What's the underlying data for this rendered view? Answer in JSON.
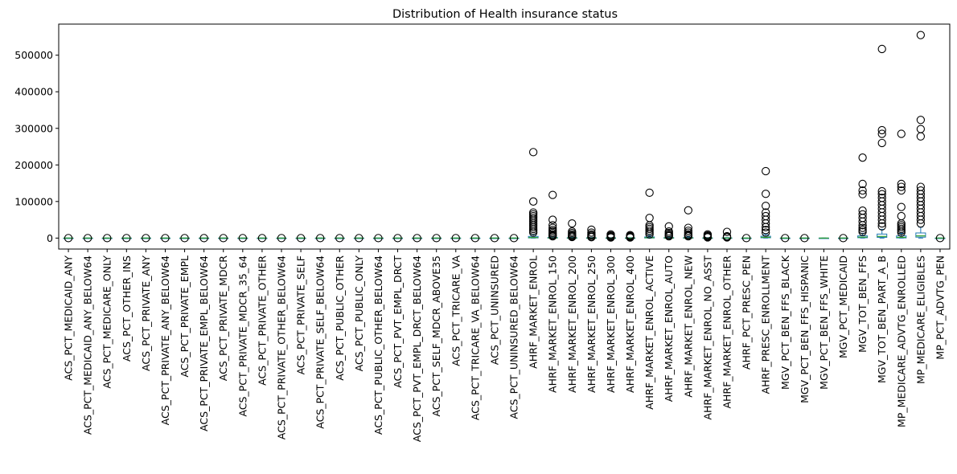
{
  "chart_data": {
    "type": "boxplot",
    "title": "Distribution of Health insurance status",
    "xlabel": "",
    "ylabel": "",
    "ylim": [
      -30000,
      585000
    ],
    "yticks": [
      0,
      100000,
      200000,
      300000,
      400000,
      500000
    ],
    "ytick_labels": [
      "0",
      "100000",
      "200000",
      "300000",
      "400000",
      "500000"
    ],
    "colors": {
      "box": "#1f77b4",
      "median": "#2ca02c",
      "flier": "#000000",
      "axis": "#000000"
    },
    "grid": false,
    "boxes": [
      {
        "name": "ACS_PCT_MEDICAID_ANY",
        "q1": 0,
        "median": 0,
        "q3": 0,
        "whisker_low": 0,
        "whisker_high": 0,
        "fliers": [
          0
        ]
      },
      {
        "name": "ACS_PCT_MEDICAID_ANY_BELOW64",
        "q1": 0,
        "median": 0,
        "q3": 0,
        "whisker_low": 0,
        "whisker_high": 0,
        "fliers": [
          0
        ]
      },
      {
        "name": "ACS_PCT_MEDICARE_ONLY",
        "q1": 0,
        "median": 0,
        "q3": 0,
        "whisker_low": 0,
        "whisker_high": 0,
        "fliers": [
          0
        ]
      },
      {
        "name": "ACS_PCT_OTHER_INS",
        "q1": 0,
        "median": 0,
        "q3": 0,
        "whisker_low": 0,
        "whisker_high": 0,
        "fliers": [
          0
        ]
      },
      {
        "name": "ACS_PCT_PRIVATE_ANY",
        "q1": 0,
        "median": 0,
        "q3": 0,
        "whisker_low": 0,
        "whisker_high": 0,
        "fliers": [
          0
        ]
      },
      {
        "name": "ACS_PCT_PRIVATE_ANY_BELOW64",
        "q1": 0,
        "median": 0,
        "q3": 0,
        "whisker_low": 0,
        "whisker_high": 0,
        "fliers": [
          0
        ]
      },
      {
        "name": "ACS_PCT_PRIVATE_EMPL",
        "q1": 0,
        "median": 0,
        "q3": 0,
        "whisker_low": 0,
        "whisker_high": 0,
        "fliers": [
          0
        ]
      },
      {
        "name": "ACS_PCT_PRIVATE_EMPL_BELOW64",
        "q1": 0,
        "median": 0,
        "q3": 0,
        "whisker_low": 0,
        "whisker_high": 0,
        "fliers": [
          0
        ]
      },
      {
        "name": "ACS_PCT_PRIVATE_MDCR",
        "q1": 0,
        "median": 0,
        "q3": 0,
        "whisker_low": 0,
        "whisker_high": 0,
        "fliers": [
          0
        ]
      },
      {
        "name": "ACS_PCT_PRIVATE_MDCR_35_64",
        "q1": 0,
        "median": 0,
        "q3": 0,
        "whisker_low": 0,
        "whisker_high": 0,
        "fliers": [
          0
        ]
      },
      {
        "name": "ACS_PCT_PRIVATE_OTHER",
        "q1": 0,
        "median": 0,
        "q3": 0,
        "whisker_low": 0,
        "whisker_high": 0,
        "fliers": [
          0
        ]
      },
      {
        "name": "ACS_PCT_PRIVATE_OTHER_BELOW64",
        "q1": 0,
        "median": 0,
        "q3": 0,
        "whisker_low": 0,
        "whisker_high": 0,
        "fliers": [
          0
        ]
      },
      {
        "name": "ACS_PCT_PRIVATE_SELF",
        "q1": 0,
        "median": 0,
        "q3": 0,
        "whisker_low": 0,
        "whisker_high": 0,
        "fliers": [
          0
        ]
      },
      {
        "name": "ACS_PCT_PRIVATE_SELF_BELOW64",
        "q1": 0,
        "median": 0,
        "q3": 0,
        "whisker_low": 0,
        "whisker_high": 0,
        "fliers": [
          0
        ]
      },
      {
        "name": "ACS_PCT_PUBLIC_OTHER",
        "q1": 0,
        "median": 0,
        "q3": 0,
        "whisker_low": 0,
        "whisker_high": 0,
        "fliers": [
          0
        ]
      },
      {
        "name": "ACS_PCT_PUBLIC_ONLY",
        "q1": 0,
        "median": 0,
        "q3": 0,
        "whisker_low": 0,
        "whisker_high": 0,
        "fliers": [
          0
        ]
      },
      {
        "name": "ACS_PCT_PUBLIC_OTHER_BELOW64",
        "q1": 0,
        "median": 0,
        "q3": 0,
        "whisker_low": 0,
        "whisker_high": 0,
        "fliers": [
          0
        ]
      },
      {
        "name": "ACS_PCT_PVT_EMPL_DRCT",
        "q1": 0,
        "median": 0,
        "q3": 0,
        "whisker_low": 0,
        "whisker_high": 0,
        "fliers": [
          0
        ]
      },
      {
        "name": "ACS_PCT_PVT_EMPL_DRCT_BELOW64",
        "q1": 0,
        "median": 0,
        "q3": 0,
        "whisker_low": 0,
        "whisker_high": 0,
        "fliers": [
          0
        ]
      },
      {
        "name": "ACS_PCT_SELF_MDCR_ABOVE35",
        "q1": 0,
        "median": 0,
        "q3": 0,
        "whisker_low": 0,
        "whisker_high": 0,
        "fliers": [
          0
        ]
      },
      {
        "name": "ACS_PCT_TRICARE_VA",
        "q1": 0,
        "median": 0,
        "q3": 0,
        "whisker_low": 0,
        "whisker_high": 0,
        "fliers": [
          0
        ]
      },
      {
        "name": "ACS_PCT_TRICARE_VA_BELOW64",
        "q1": 0,
        "median": 0,
        "q3": 0,
        "whisker_low": 0,
        "whisker_high": 0,
        "fliers": [
          0
        ]
      },
      {
        "name": "ACS_PCT_UNINSURED",
        "q1": 0,
        "median": 0,
        "q3": 0,
        "whisker_low": 0,
        "whisker_high": 0,
        "fliers": [
          0
        ]
      },
      {
        "name": "ACS_PCT_UNINSURED_BELOW64",
        "q1": 0,
        "median": 0,
        "q3": 0,
        "whisker_low": 0,
        "whisker_high": 0,
        "fliers": [
          0
        ]
      },
      {
        "name": "AHRF_MARKET_ENROL",
        "q1": 500,
        "median": 1500,
        "q3": 4500,
        "whisker_low": 0,
        "whisker_high": 10000,
        "fliers": [
          235000,
          100000,
          70000,
          65000,
          60000,
          55000,
          50000,
          45000,
          40000,
          35000,
          30000,
          25000,
          20000,
          15000
        ]
      },
      {
        "name": "AHRF_MARKET_ENROL_150",
        "q1": 200,
        "median": 500,
        "q3": 1500,
        "whisker_low": 0,
        "whisker_high": 4000,
        "fliers": [
          118000,
          50000,
          35000,
          28000,
          22000,
          18000,
          14000,
          10000,
          7000,
          5000
        ]
      },
      {
        "name": "AHRF_MARKET_ENROL_200",
        "q1": 100,
        "median": 300,
        "q3": 900,
        "whisker_low": 0,
        "whisker_high": 2000,
        "fliers": [
          40000,
          18000,
          14000,
          10000,
          7000,
          5000,
          3000
        ]
      },
      {
        "name": "AHRF_MARKET_ENROL_250",
        "q1": 100,
        "median": 250,
        "q3": 700,
        "whisker_low": 0,
        "whisker_high": 1500,
        "fliers": [
          23000,
          15000,
          10000,
          7000,
          4000,
          2500
        ]
      },
      {
        "name": "AHRF_MARKET_ENROL_300",
        "q1": 50,
        "median": 150,
        "q3": 500,
        "whisker_low": 0,
        "whisker_high": 1000,
        "fliers": [
          10000,
          7000,
          5000,
          3000,
          1500
        ]
      },
      {
        "name": "AHRF_MARKET_ENROL_400",
        "q1": 50,
        "median": 150,
        "q3": 450,
        "whisker_low": 0,
        "whisker_high": 1000,
        "fliers": [
          8000,
          6000,
          4000,
          2500,
          1500
        ]
      },
      {
        "name": "AHRF_MARKET_ENROL_ACTIVE",
        "q1": 300,
        "median": 900,
        "q3": 3000,
        "whisker_low": 0,
        "whisker_high": 7000,
        "fliers": [
          124000,
          55000,
          35000,
          30000,
          25000,
          20000,
          15000,
          10000
        ]
      },
      {
        "name": "AHRF_MARKET_ENROL_AUTO",
        "q1": 100,
        "median": 400,
        "q3": 1200,
        "whisker_low": 0,
        "whisker_high": 3000,
        "fliers": [
          32000,
          18000,
          14000,
          10000,
          7000,
          5000
        ]
      },
      {
        "name": "AHRF_MARKET_ENROL_NEW",
        "q1": 100,
        "median": 400,
        "q3": 1200,
        "whisker_low": 0,
        "whisker_high": 3000,
        "fliers": [
          76000,
          28000,
          20000,
          15000,
          10000,
          7000,
          5000
        ]
      },
      {
        "name": "AHRF_MARKET_ENROL_NO_ASST",
        "q1": 50,
        "median": 150,
        "q3": 500,
        "whisker_low": 0,
        "whisker_high": 1200,
        "fliers": [
          10000,
          7000,
          5000,
          3000,
          2000
        ]
      },
      {
        "name": "AHRF_MARKET_ENROL_OTHER",
        "q1": 50,
        "median": 150,
        "q3": 500,
        "whisker_low": 0,
        "whisker_high": 1200,
        "fliers": [
          17000,
          5000,
          3000,
          2000
        ]
      },
      {
        "name": "AHRF_PCT_PRESC_PEN",
        "q1": 0,
        "median": 0,
        "q3": 0,
        "whisker_low": 0,
        "whisker_high": 0,
        "fliers": [
          0
        ]
      },
      {
        "name": "AHRF_PRESC_ENROLLMENT",
        "q1": 800,
        "median": 2000,
        "q3": 5000,
        "whisker_low": 0,
        "whisker_high": 10000,
        "fliers": [
          183000,
          121000,
          88000,
          70000,
          60000,
          50000,
          40000,
          30000,
          22000,
          15000
        ]
      },
      {
        "name": "MGV_PCT_BEN_FFS_BLACK",
        "q1": 0,
        "median": 0,
        "q3": 0,
        "whisker_low": 0,
        "whisker_high": 0,
        "fliers": [
          0
        ]
      },
      {
        "name": "MGV_PCT_BEN_FFS_HISPANIC",
        "q1": 0,
        "median": 0,
        "q3": 0,
        "whisker_low": 0,
        "whisker_high": 0,
        "fliers": [
          0
        ]
      },
      {
        "name": "MGV_PCT_BEN_FFS_WHITE",
        "q1": 0,
        "median": 0,
        "q3": 0,
        "whisker_low": 0,
        "whisker_high": 0,
        "fliers": []
      },
      {
        "name": "MGV_PCT_MEDICAID",
        "q1": 0,
        "median": 0,
        "q3": 0,
        "whisker_low": 0,
        "whisker_high": 0,
        "fliers": [
          0
        ]
      },
      {
        "name": "MGV_TOT_BEN_FFS",
        "q1": 1000,
        "median": 2500,
        "q3": 6000,
        "whisker_low": 0,
        "whisker_high": 13000,
        "fliers": [
          220000,
          148000,
          130000,
          120000,
          75000,
          65000,
          55000,
          45000,
          35000,
          28000,
          22000,
          17000
        ]
      },
      {
        "name": "MGV_TOT_BEN_PART_A_B",
        "q1": 2000,
        "median": 4500,
        "q3": 11000,
        "whisker_low": 0,
        "whisker_high": 24000,
        "fliers": [
          517000,
          295000,
          285000,
          260000,
          128000,
          120000,
          110000,
          100000,
          90000,
          80000,
          70000,
          60000,
          50000,
          40000,
          32000
        ]
      },
      {
        "name": "MP_MEDICARE_ADVTG_ENROLLED",
        "q1": 500,
        "median": 2000,
        "q3": 6000,
        "whisker_low": 0,
        "whisker_high": 13000,
        "fliers": [
          285000,
          148000,
          140000,
          130000,
          85000,
          60000,
          40000,
          35000,
          30000,
          25000,
          20000,
          15000
        ]
      },
      {
        "name": "MP_MEDICARE_ELIGIBLES",
        "q1": 2500,
        "median": 6000,
        "q3": 14000,
        "whisker_low": 0,
        "whisker_high": 30000,
        "fliers": [
          555000,
          323000,
          298000,
          278000,
          140000,
          130000,
          120000,
          110000,
          100000,
          90000,
          80000,
          70000,
          60000,
          50000,
          40000
        ]
      },
      {
        "name": "MP_PCT_ADVTG_PEN",
        "q1": 0,
        "median": 0,
        "q3": 0,
        "whisker_low": 0,
        "whisker_high": 0,
        "fliers": [
          0
        ]
      }
    ]
  }
}
